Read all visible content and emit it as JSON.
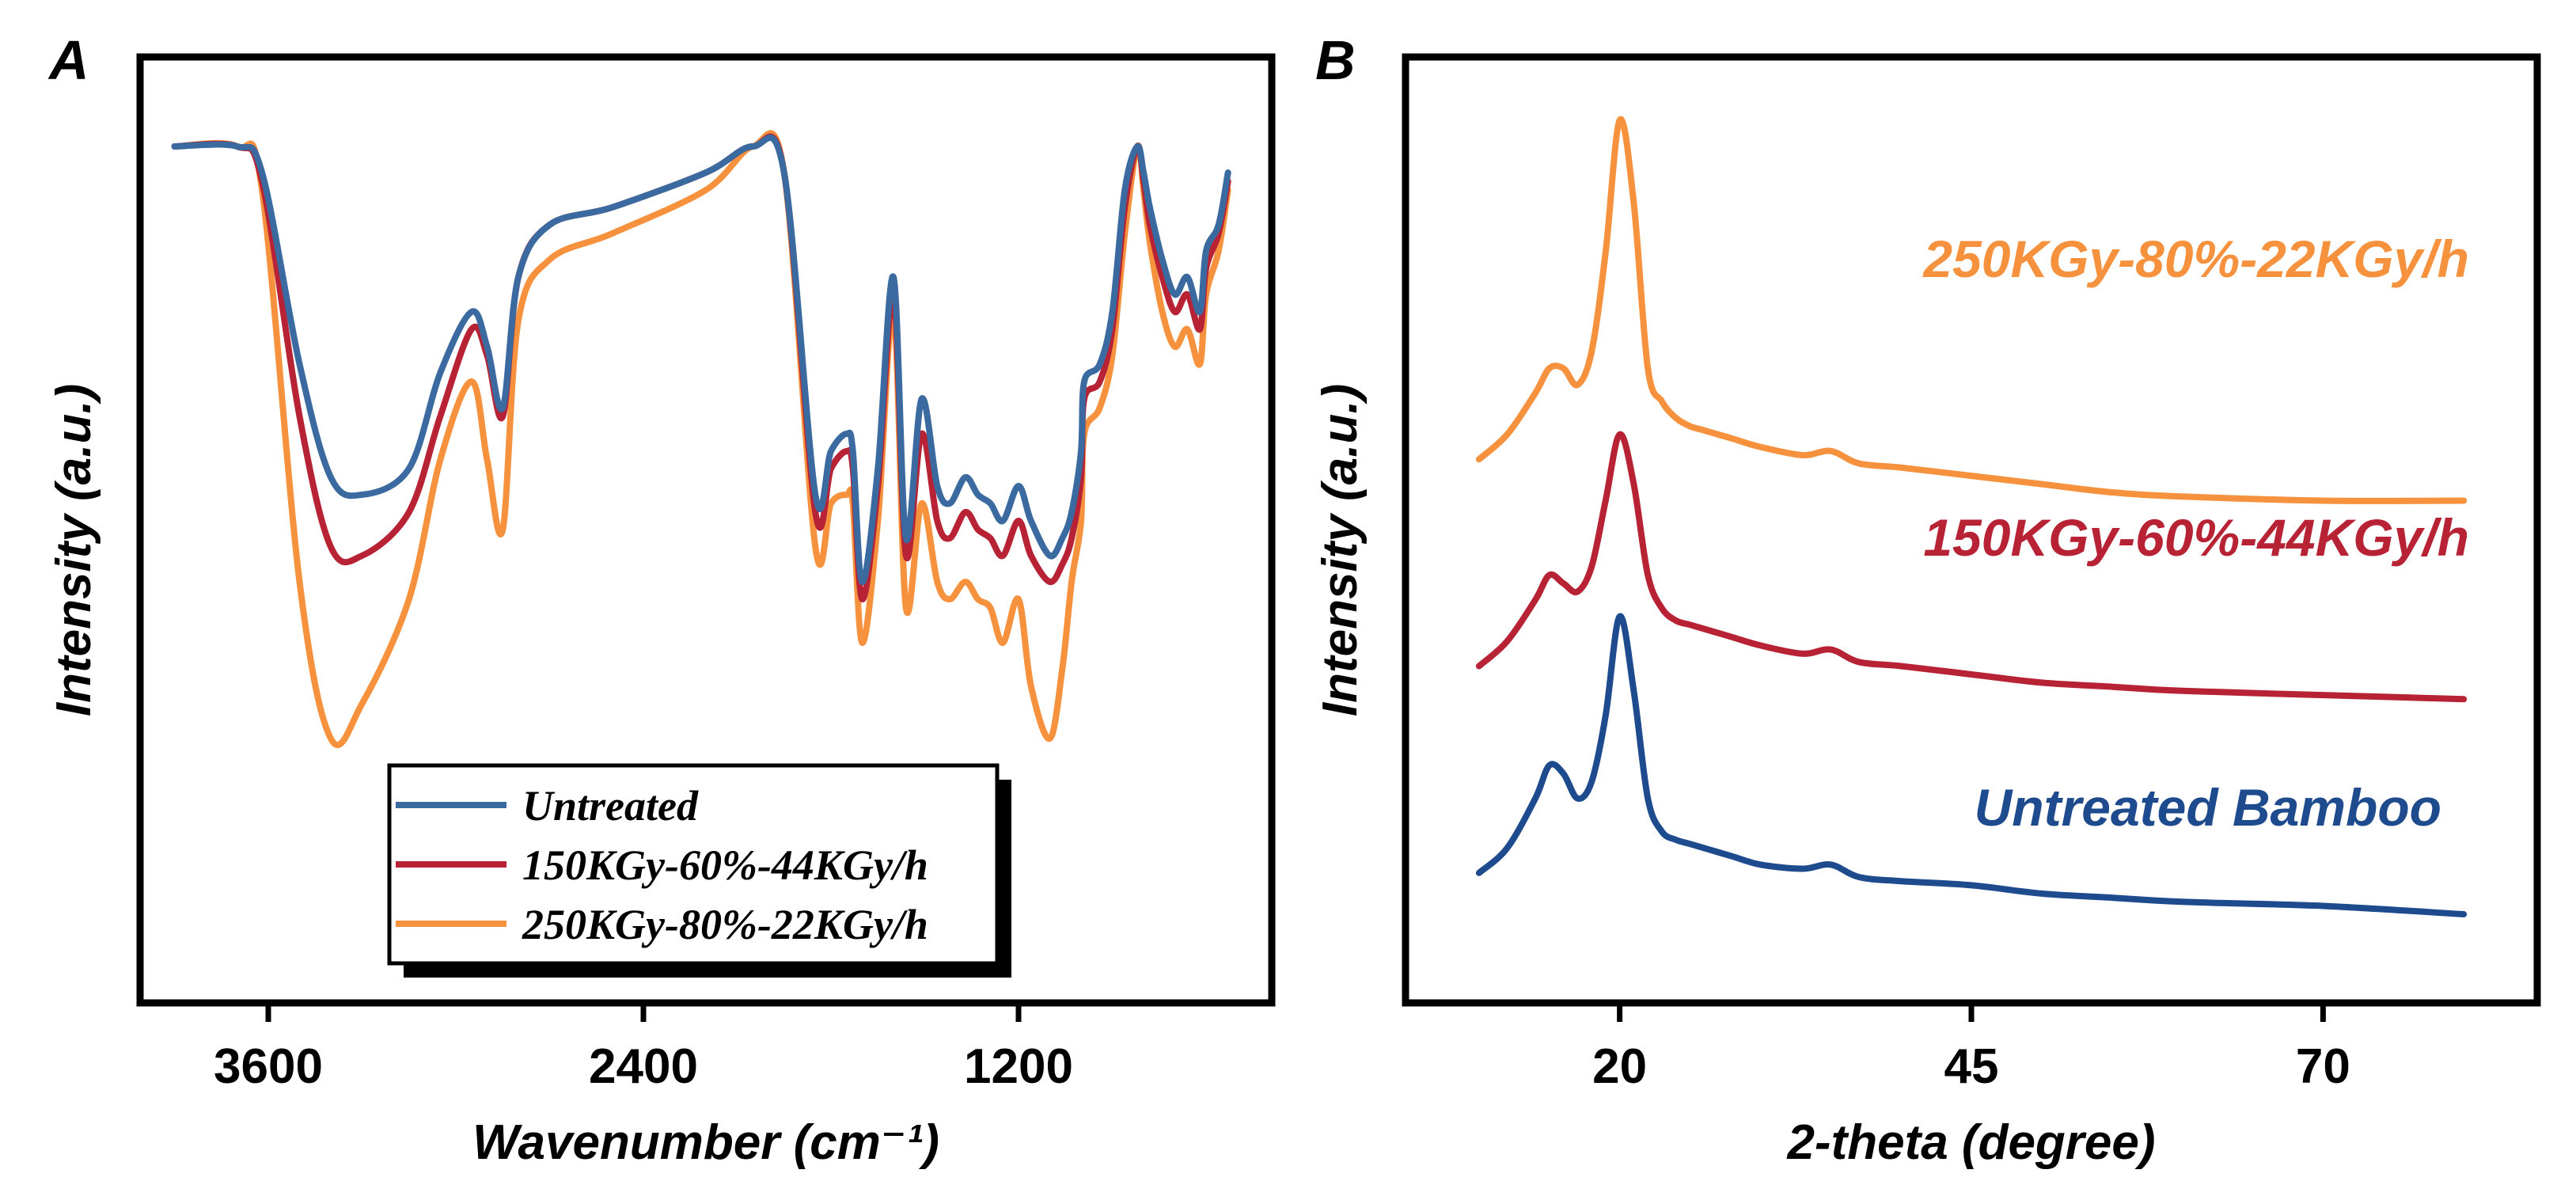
{
  "chart_data": [
    {
      "panel": "A",
      "type": "line",
      "title": "",
      "xlabel": "Wavenumber (cm⁻¹)",
      "ylabel": "Intensity (a.u.)",
      "xlim": [
        4000,
        400
      ],
      "x_reversed": true,
      "ylim": [
        0,
        1
      ],
      "xticks": [
        3600,
        2400,
        1200
      ],
      "grid": false,
      "legend_position": "bottom-center",
      "legend_entries": [
        "Untreated",
        "150KGy-60%-44KGy/h",
        "250KGy-80%-22KGy/h"
      ],
      "series": [
        {
          "name": "Untreated",
          "color": "#3b6aa0",
          "x": [
            3900,
            3700,
            3620,
            3500,
            3400,
            3300,
            3150,
            3050,
            2950,
            2900,
            2850,
            2800,
            2700,
            2500,
            2200,
            2050,
            1950,
            1850,
            1800,
            1750,
            1730,
            1700,
            1650,
            1600,
            1560,
            1510,
            1460,
            1420,
            1370,
            1330,
            1290,
            1250,
            1200,
            1160,
            1100,
            1060,
            1030,
            1000,
            990,
            940,
            900,
            860,
            820,
            800,
            780,
            740,
            700,
            660,
            620,
            600,
            560,
            530
          ],
          "y": [
            0.95,
            0.95,
            0.92,
            0.7,
            0.57,
            0.55,
            0.58,
            0.69,
            0.76,
            0.72,
            0.65,
            0.8,
            0.86,
            0.88,
            0.92,
            0.95,
            0.92,
            0.55,
            0.6,
            0.62,
            0.6,
            0.45,
            0.58,
            0.8,
            0.5,
            0.66,
            0.56,
            0.54,
            0.57,
            0.55,
            0.54,
            0.52,
            0.56,
            0.52,
            0.48,
            0.5,
            0.53,
            0.6,
            0.68,
            0.7,
            0.76,
            0.9,
            0.95,
            0.92,
            0.88,
            0.82,
            0.78,
            0.8,
            0.76,
            0.83,
            0.86,
            0.92
          ]
        },
        {
          "name": "150KGy-60%-44KGy/h",
          "color": "#b72334",
          "x": [
            3900,
            3700,
            3620,
            3500,
            3400,
            3300,
            3150,
            3050,
            2950,
            2900,
            2850,
            2800,
            2700,
            2500,
            2200,
            2050,
            1950,
            1850,
            1800,
            1750,
            1730,
            1700,
            1650,
            1600,
            1560,
            1510,
            1460,
            1420,
            1370,
            1330,
            1290,
            1250,
            1200,
            1160,
            1100,
            1060,
            1030,
            1000,
            990,
            940,
            900,
            860,
            820,
            800,
            780,
            740,
            700,
            660,
            620,
            600,
            560,
            530
          ],
          "y": [
            0.95,
            0.95,
            0.91,
            0.64,
            0.49,
            0.48,
            0.53,
            0.64,
            0.74,
            0.71,
            0.64,
            0.8,
            0.86,
            0.88,
            0.92,
            0.95,
            0.92,
            0.53,
            0.58,
            0.6,
            0.58,
            0.43,
            0.56,
            0.78,
            0.48,
            0.62,
            0.52,
            0.5,
            0.53,
            0.51,
            0.5,
            0.48,
            0.52,
            0.48,
            0.45,
            0.47,
            0.5,
            0.57,
            0.66,
            0.68,
            0.74,
            0.88,
            0.95,
            0.91,
            0.86,
            0.8,
            0.76,
            0.78,
            0.74,
            0.81,
            0.85,
            0.91
          ]
        },
        {
          "name": "250KGy-80%-22KGy/h",
          "color": "#f6913d",
          "x": [
            3900,
            3700,
            3620,
            3500,
            3400,
            3300,
            3150,
            3050,
            2950,
            2900,
            2850,
            2800,
            2700,
            2500,
            2200,
            2050,
            1950,
            1850,
            1800,
            1750,
            1730,
            1700,
            1650,
            1600,
            1560,
            1510,
            1460,
            1420,
            1370,
            1330,
            1290,
            1250,
            1200,
            1160,
            1100,
            1060,
            1030,
            1000,
            990,
            940,
            900,
            860,
            820,
            800,
            780,
            740,
            700,
            660,
            620,
            600,
            560,
            530
          ],
          "y": [
            0.95,
            0.95,
            0.9,
            0.45,
            0.27,
            0.31,
            0.43,
            0.59,
            0.68,
            0.59,
            0.51,
            0.75,
            0.82,
            0.85,
            0.9,
            0.95,
            0.92,
            0.49,
            0.54,
            0.55,
            0.54,
            0.38,
            0.52,
            0.76,
            0.42,
            0.54,
            0.45,
            0.43,
            0.45,
            0.43,
            0.42,
            0.38,
            0.43,
            0.33,
            0.27,
            0.35,
            0.45,
            0.52,
            0.62,
            0.65,
            0.71,
            0.85,
            0.95,
            0.9,
            0.84,
            0.76,
            0.72,
            0.74,
            0.7,
            0.78,
            0.83,
            0.9
          ]
        }
      ]
    },
    {
      "panel": "B",
      "type": "line",
      "title": "",
      "xlabel": "2-theta (degree)",
      "ylabel": "Intensity (a.u.)",
      "xlim": [
        5,
        85
      ],
      "xticks": [
        20,
        45,
        70
      ],
      "ylim": [
        0,
        1
      ],
      "yticks_shown": false,
      "grid": false,
      "annotations": [
        "250KGy-80%-22KGy/h",
        "150KGy-60%-44KGy/h",
        "Untreated Bamboo"
      ],
      "series": [
        {
          "name": "Untreated Bamboo",
          "color": "#1e4a8e",
          "x": [
            10,
            12,
            14,
            15,
            16,
            17,
            18,
            19,
            20,
            21,
            22,
            23,
            24,
            25,
            26,
            28,
            30,
            33,
            35,
            37,
            40,
            45,
            50,
            55,
            60,
            70,
            80
          ],
          "y": [
            0.05,
            0.08,
            0.14,
            0.18,
            0.17,
            0.14,
            0.16,
            0.24,
            0.36,
            0.27,
            0.14,
            0.1,
            0.09,
            0.085,
            0.08,
            0.07,
            0.06,
            0.055,
            0.06,
            0.045,
            0.04,
            0.035,
            0.025,
            0.02,
            0.015,
            0.01,
            0.0
          ]
        },
        {
          "name": "150KGy-60%-44KGy/h",
          "color": "#b72334",
          "x": [
            10,
            12,
            14,
            15,
            16,
            17,
            18,
            19,
            20,
            21,
            22,
            23,
            24,
            25,
            26,
            28,
            30,
            33,
            35,
            37,
            40,
            45,
            50,
            55,
            60,
            70,
            80
          ],
          "y": [
            0.3,
            0.33,
            0.38,
            0.41,
            0.4,
            0.39,
            0.42,
            0.5,
            0.58,
            0.52,
            0.41,
            0.37,
            0.355,
            0.35,
            0.345,
            0.335,
            0.325,
            0.315,
            0.32,
            0.305,
            0.3,
            0.29,
            0.28,
            0.275,
            0.27,
            0.265,
            0.26
          ]
        },
        {
          "name": "250KGy-80%-22KGy/h",
          "color": "#f6913d",
          "x": [
            10,
            12,
            14,
            15,
            16,
            17,
            18,
            19,
            20,
            21,
            22,
            23,
            24,
            25,
            26,
            28,
            30,
            33,
            35,
            37,
            40,
            45,
            50,
            55,
            60,
            70,
            80
          ],
          "y": [
            0.55,
            0.58,
            0.63,
            0.66,
            0.66,
            0.64,
            0.68,
            0.8,
            0.96,
            0.86,
            0.66,
            0.62,
            0.6,
            0.59,
            0.585,
            0.575,
            0.565,
            0.555,
            0.56,
            0.545,
            0.54,
            0.53,
            0.52,
            0.51,
            0.505,
            0.5,
            0.5
          ]
        }
      ]
    }
  ],
  "colors": {
    "blue": "#3b6aa0",
    "red": "#b72334",
    "orange": "#f6913d",
    "dark_blue": "#1e4a8e"
  }
}
